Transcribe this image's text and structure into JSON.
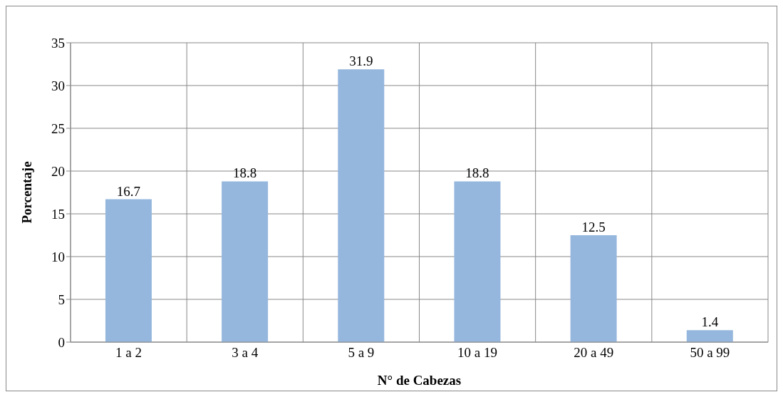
{
  "chart_data": {
    "type": "bar",
    "xlabel": "N° de Cabezas",
    "ylabel": "Porcentaje",
    "categories": [
      "1 a 2",
      "3 a 4",
      "5 a 9",
      "10 a 19",
      "20 a 49",
      "50 a 99"
    ],
    "values": [
      16.7,
      18.8,
      31.9,
      18.8,
      12.5,
      1.4
    ],
    "color": "#95b7dd",
    "ylim": [
      0,
      35
    ],
    "yticks": [
      0,
      5,
      10,
      15,
      20,
      25,
      30,
      35
    ],
    "grid": true,
    "data_labels": true
  }
}
